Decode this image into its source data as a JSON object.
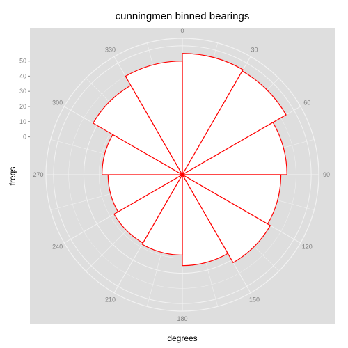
{
  "chart_data": {
    "type": "bar",
    "coord": "polar",
    "title": "cunningmen binned bearings",
    "xlabel": "degrees",
    "ylabel": "freqs",
    "bin_width_degrees": 30,
    "categories": [
      "0",
      "30",
      "60",
      "90",
      "120",
      "150",
      "180",
      "210",
      "240",
      "270",
      "300",
      "330"
    ],
    "values": [
      55,
      54,
      44,
      40,
      42,
      35,
      28,
      27,
      24,
      28,
      43,
      50
    ],
    "angle_ticks": [
      "0",
      "30",
      "60",
      "90",
      "120",
      "150",
      "180",
      "210",
      "240",
      "270",
      "300",
      "330"
    ],
    "y_ticks": [
      "0",
      "10",
      "20",
      "30",
      "40",
      "50"
    ],
    "ylim": [
      -25,
      65
    ],
    "grid": true,
    "colors": {
      "panel": "#dedede",
      "grid": "#f2f2f2",
      "bar_fill": "#ffffff",
      "bar_outline": "#ff0000",
      "tick_text": "#7f7f7f"
    }
  }
}
